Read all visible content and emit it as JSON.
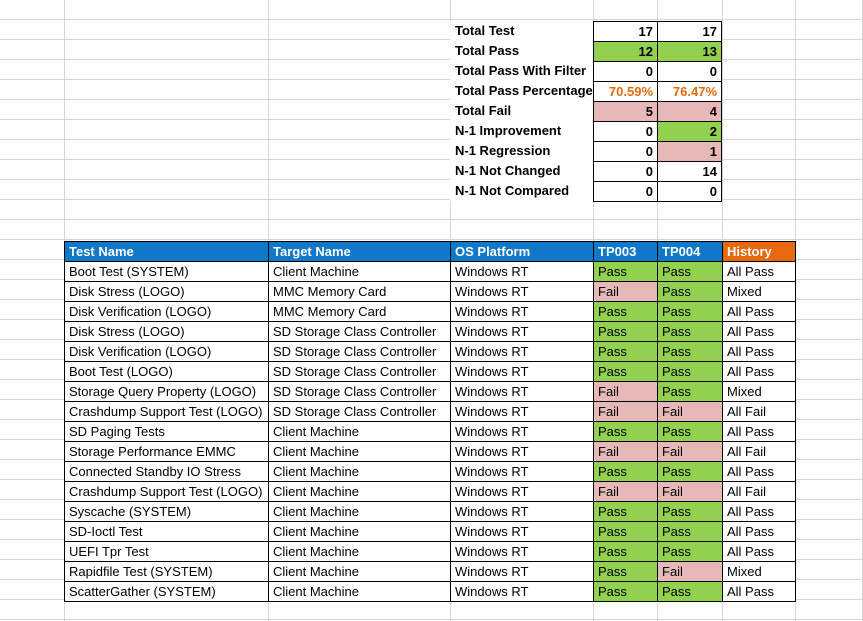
{
  "colors": {
    "header_blue": "#1078C8",
    "header_orange": "#E8680D",
    "pass_green": "#92D050",
    "fail_rose": "#E6B8B7",
    "pct_orange": "#E8690C",
    "gridline": "#D6D6D6",
    "cell_border": "#000000"
  },
  "summary": {
    "rows": [
      {
        "label": "Total Test",
        "values": [
          "17",
          "17"
        ],
        "fills": [
          "white",
          "white"
        ]
      },
      {
        "label": "Total Pass",
        "values": [
          "12",
          "13"
        ],
        "fills": [
          "green",
          "green"
        ]
      },
      {
        "label": "Total Pass With Filter",
        "values": [
          "0",
          "0"
        ],
        "fills": [
          "white",
          "white"
        ]
      },
      {
        "label": "Total Pass Percentage",
        "values": [
          "70.59%",
          "76.47%"
        ],
        "fills": [
          "white",
          "white"
        ],
        "value_color": "pct_orange"
      },
      {
        "label": "Total Fail",
        "values": [
          "5",
          "4"
        ],
        "fills": [
          "rose",
          "rose"
        ]
      },
      {
        "label": "N-1 Improvement",
        "values": [
          "0",
          "2"
        ],
        "fills": [
          "white",
          "green"
        ]
      },
      {
        "label": "N-1 Regression",
        "values": [
          "0",
          "1"
        ],
        "fills": [
          "white",
          "rose"
        ]
      },
      {
        "label": "N-1 Not Changed",
        "values": [
          "0",
          "14"
        ],
        "fills": [
          "white",
          "white"
        ]
      },
      {
        "label": "N-1 Not Compared",
        "values": [
          "0",
          "0"
        ],
        "fills": [
          "white",
          "white"
        ]
      }
    ]
  },
  "main_table": {
    "headers": [
      {
        "label": "Test Name",
        "fill": "blue"
      },
      {
        "label": "Target Name",
        "fill": "blue"
      },
      {
        "label": "OS Platform",
        "fill": "blue"
      },
      {
        "label": "TP003",
        "fill": "blue"
      },
      {
        "label": "TP004",
        "fill": "blue"
      },
      {
        "label": "History",
        "fill": "orange"
      }
    ],
    "rows": [
      {
        "test": "Boot Test (SYSTEM)",
        "target": "Client Machine",
        "os": "Windows RT",
        "tp003": "Pass",
        "tp004": "Pass",
        "history": "All Pass"
      },
      {
        "test": "Disk Stress (LOGO)",
        "target": "MMC Memory Card",
        "os": "Windows RT",
        "tp003": "Fail",
        "tp004": "Pass",
        "history": "Mixed"
      },
      {
        "test": "Disk Verification (LOGO)",
        "target": "MMC Memory Card",
        "os": "Windows RT",
        "tp003": "Pass",
        "tp004": "Pass",
        "history": "All Pass"
      },
      {
        "test": "Disk Stress (LOGO)",
        "target": "SD Storage Class Controller",
        "os": "Windows RT",
        "tp003": "Pass",
        "tp004": "Pass",
        "history": "All Pass"
      },
      {
        "test": "Disk Verification (LOGO)",
        "target": "SD Storage Class Controller",
        "os": "Windows RT",
        "tp003": "Pass",
        "tp004": "Pass",
        "history": "All Pass"
      },
      {
        "test": "Boot Test (LOGO)",
        "target": "SD Storage Class Controller",
        "os": "Windows RT",
        "tp003": "Pass",
        "tp004": "Pass",
        "history": "All Pass"
      },
      {
        "test": "Storage Query Property (LOGO)",
        "target": "SD Storage Class Controller",
        "os": "Windows RT",
        "tp003": "Fail",
        "tp004": "Pass",
        "history": "Mixed"
      },
      {
        "test": "Crashdump Support Test (LOGO)",
        "target": "SD Storage Class Controller",
        "os": "Windows RT",
        "tp003": "Fail",
        "tp004": "Fail",
        "history": "All Fail"
      },
      {
        "test": "SD Paging Tests",
        "target": "Client Machine",
        "os": "Windows RT",
        "tp003": "Pass",
        "tp004": "Pass",
        "history": "All Pass"
      },
      {
        "test": "Storage Performance EMMC",
        "target": "Client Machine",
        "os": "Windows RT",
        "tp003": "Fail",
        "tp004": "Fail",
        "history": "All Fail"
      },
      {
        "test": "Connected Standby IO Stress",
        "target": "Client Machine",
        "os": "Windows RT",
        "tp003": "Pass",
        "tp004": "Pass",
        "history": "All Pass"
      },
      {
        "test": "Crashdump Support Test (LOGO)",
        "target": "Client Machine",
        "os": "Windows RT",
        "tp003": "Fail",
        "tp004": "Fail",
        "history": "All Fail"
      },
      {
        "test": "Syscache (SYSTEM)",
        "target": "Client Machine",
        "os": "Windows RT",
        "tp003": "Pass",
        "tp004": "Pass",
        "history": "All Pass"
      },
      {
        "test": "SD-Ioctl Test",
        "target": "Client Machine",
        "os": "Windows RT",
        "tp003": "Pass",
        "tp004": "Pass",
        "history": "All Pass"
      },
      {
        "test": "UEFI Tpr Test",
        "target": "Client Machine",
        "os": "Windows RT",
        "tp003": "Pass",
        "tp004": "Pass",
        "history": "All Pass"
      },
      {
        "test": "Rapidfile Test (SYSTEM)",
        "target": "Client Machine",
        "os": "Windows RT",
        "tp003": "Pass",
        "tp004": "Fail",
        "history": "Mixed"
      },
      {
        "test": "ScatterGather (SYSTEM)",
        "target": "Client Machine",
        "os": "Windows RT",
        "tp003": "Pass",
        "tp004": "Pass",
        "history": "All Pass"
      }
    ]
  }
}
